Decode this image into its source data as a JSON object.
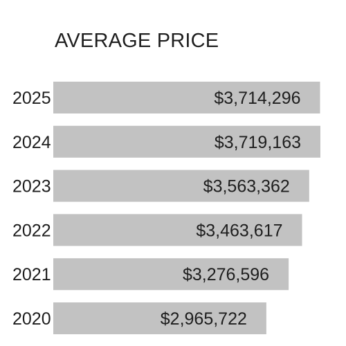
{
  "chart_data": {
    "type": "bar",
    "orientation": "horizontal",
    "title": "AVERAGE PRICE",
    "categories": [
      "2025",
      "2024",
      "2023",
      "2022",
      "2021",
      "2020"
    ],
    "values": [
      3714296,
      3719163,
      3563362,
      3463617,
      3276596,
      2965722
    ],
    "value_labels": [
      "$3,714,296",
      "$3,719,163",
      "$3,563,362",
      "$3,463,617",
      "$3,276,596",
      "$2,965,722"
    ],
    "xlabel": "",
    "ylabel": "",
    "bar_color": "#c2c2c2",
    "text_color": "#1e1e1e",
    "grid": false,
    "legend": "none"
  }
}
